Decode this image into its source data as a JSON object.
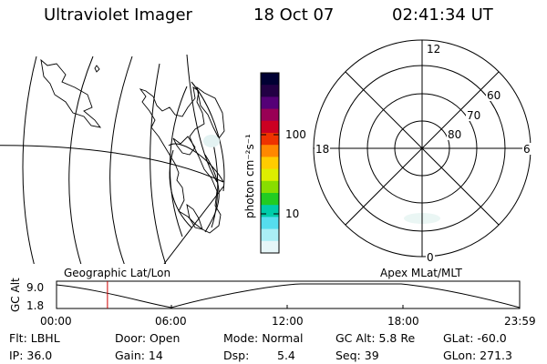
{
  "header": {
    "title": "Ultraviolet Imager",
    "date": "18 Oct 07",
    "time": "02:41:34 UT"
  },
  "geo_panel": {
    "label": "Geographic Lat/Lon"
  },
  "apex_panel": {
    "label": "Apex MLat/MLT",
    "mlt_labels": [
      "12",
      "18",
      "6",
      "0"
    ],
    "mlat_labels": [
      "60",
      "70",
      "80"
    ]
  },
  "colorbar": {
    "unit_label": "photon cm⁻²s⁻¹",
    "tick_labels": [
      "100",
      "10"
    ],
    "colors": [
      "#000033",
      "#220044",
      "#550077",
      "#990055",
      "#cc0022",
      "#ee3300",
      "#ff8800",
      "#ffcc00",
      "#ddee00",
      "#88dd00",
      "#22cc22",
      "#00ccaa",
      "#55ddee",
      "#aaeef5",
      "#e6f6f8"
    ]
  },
  "altitude_plot": {
    "ylabel": "GC Alt",
    "yticks": [
      "9.0",
      "1.8"
    ],
    "xticks": [
      "00:00",
      "06:00",
      "12:00",
      "18:00",
      "23:59"
    ],
    "current_time_fraction": 0.11,
    "marker_color": "#cc0000"
  },
  "status": {
    "flt": "Flt: LBHL",
    "door": "Door: Open",
    "mode": "Mode: Normal",
    "gc_alt": "GC Alt: 5.8 Re",
    "glat": "GLat: -60.0",
    "ip": "IP: 36.0",
    "gain": "Gain: 14",
    "dsp_label": "Dsp:",
    "dsp_value": "5.4",
    "seq": "Seq: 39",
    "glon": "GLon: 271.3"
  }
}
